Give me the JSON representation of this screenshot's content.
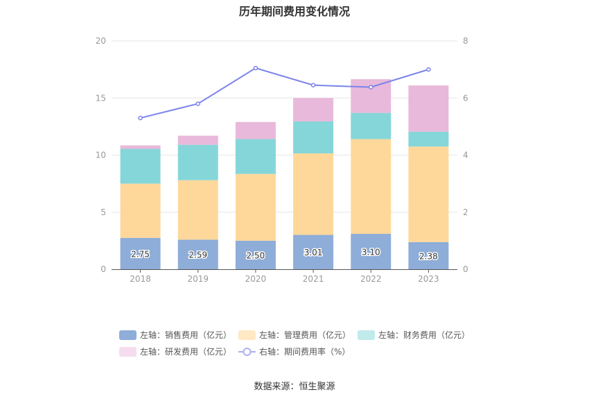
{
  "chart_data": {
    "type": "bar",
    "title": "历年期间费用变化情况",
    "categories": [
      "2018",
      "2019",
      "2020",
      "2021",
      "2022",
      "2023"
    ],
    "left_axis": {
      "ylim": [
        0,
        20
      ],
      "ticks": [
        "0",
        "5",
        "10",
        "15",
        "20"
      ]
    },
    "right_axis": {
      "ylim": [
        0,
        8
      ],
      "ticks": [
        "0",
        "2",
        "4",
        "6",
        "8"
      ]
    },
    "series": [
      {
        "name": "左轴：销售费用（亿元）",
        "type": "bar",
        "axis": "left",
        "color": "#8eadd8",
        "values": [
          2.75,
          2.59,
          2.5,
          3.01,
          3.1,
          2.38
        ],
        "labels": [
          "2.75",
          "2.59",
          "2.50",
          "3.01",
          "3.10",
          "2.38"
        ]
      },
      {
        "name": "左轴：管理费用（亿元）",
        "type": "bar",
        "axis": "left",
        "color": "#fed89b",
        "values": [
          4.75,
          5.21,
          5.85,
          7.14,
          8.3,
          8.37
        ]
      },
      {
        "name": "左轴：财务费用（亿元）",
        "type": "bar",
        "axis": "left",
        "color": "#85d6d9",
        "values": [
          3.05,
          3.1,
          3.05,
          2.8,
          2.3,
          1.3
        ]
      },
      {
        "name": "左轴：研发费用（亿元）",
        "type": "bar",
        "axis": "left",
        "color": "#e8b9da",
        "values": [
          0.3,
          0.8,
          1.5,
          2.05,
          2.95,
          4.05
        ]
      },
      {
        "name": "右轴：期间费用率（%）",
        "type": "line",
        "axis": "right",
        "color": "#7b83eb",
        "values": [
          5.3,
          5.8,
          7.05,
          6.45,
          6.38,
          7.0
        ]
      }
    ],
    "legend_swatch_colors": [
      "#8eadd8",
      "#ffe8c3",
      "#c1eaeb",
      "#f5dcee",
      "#aab0f2"
    ],
    "grid": true,
    "legend_position": "bottom"
  },
  "source": "数据来源：恒生聚源"
}
